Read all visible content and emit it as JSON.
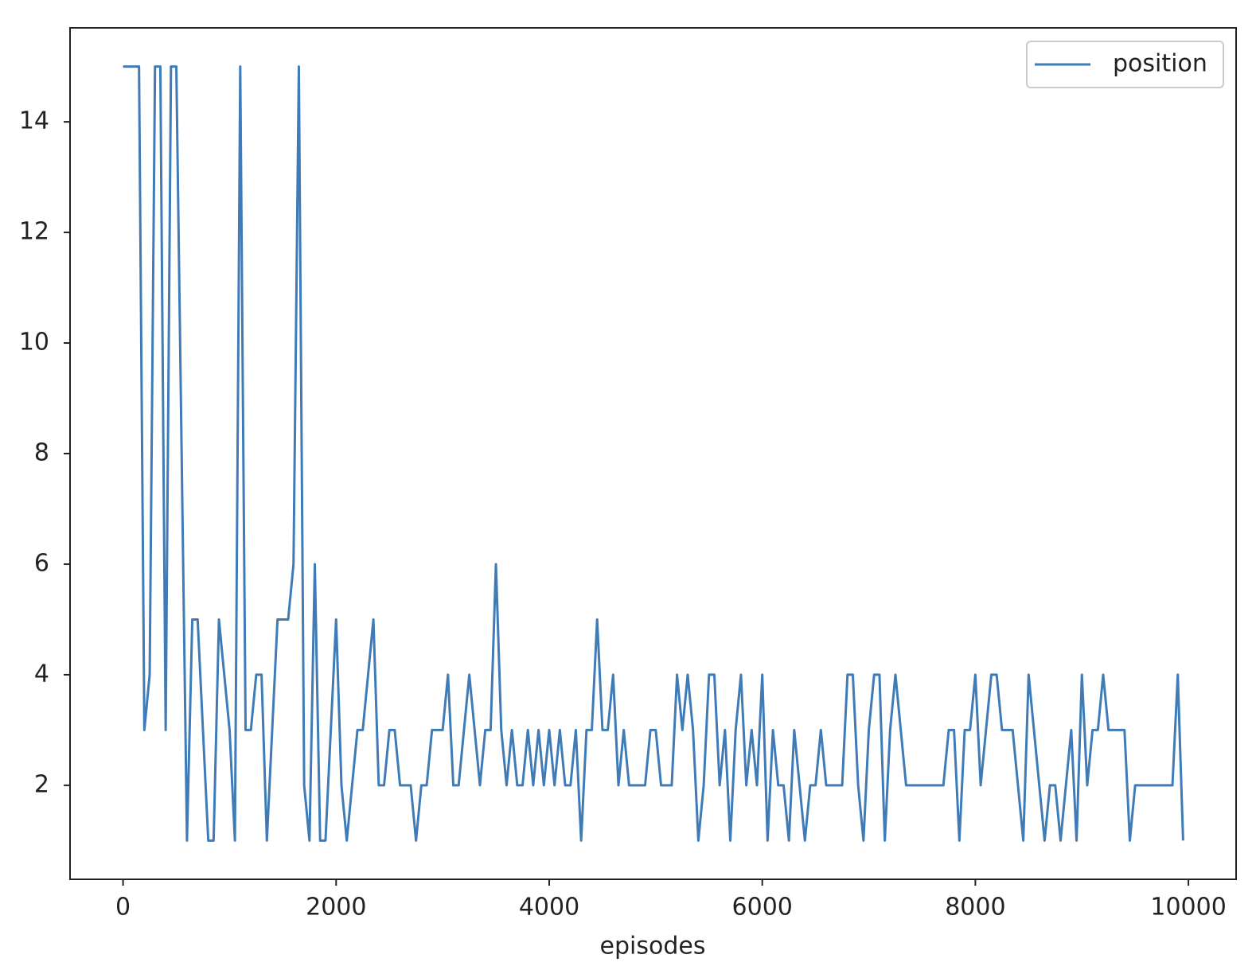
{
  "chart_data": {
    "type": "line",
    "xlabel": "episodes",
    "x": [
      0,
      50,
      100,
      150,
      200,
      250,
      300,
      350,
      400,
      450,
      500,
      550,
      600,
      650,
      700,
      750,
      800,
      850,
      900,
      950,
      1000,
      1050,
      1100,
      1150,
      1200,
      1250,
      1300,
      1350,
      1400,
      1450,
      1500,
      1550,
      1600,
      1650,
      1700,
      1750,
      1800,
      1850,
      1900,
      1950,
      2000,
      2050,
      2100,
      2150,
      2200,
      2250,
      2300,
      2350,
      2400,
      2450,
      2500,
      2550,
      2600,
      2650,
      2700,
      2750,
      2800,
      2850,
      2900,
      2950,
      3000,
      3050,
      3100,
      3150,
      3200,
      3250,
      3300,
      3350,
      3400,
      3450,
      3500,
      3550,
      3600,
      3650,
      3700,
      3750,
      3800,
      3850,
      3900,
      3950,
      4000,
      4050,
      4100,
      4150,
      4200,
      4250,
      4300,
      4350,
      4400,
      4450,
      4500,
      4550,
      4600,
      4650,
      4700,
      4750,
      4800,
      4850,
      4900,
      4950,
      5000,
      5050,
      5100,
      5150,
      5200,
      5250,
      5300,
      5350,
      5400,
      5450,
      5500,
      5550,
      5600,
      5650,
      5700,
      5750,
      5800,
      5850,
      5900,
      5950,
      6000,
      6050,
      6100,
      6150,
      6200,
      6250,
      6300,
      6350,
      6400,
      6450,
      6500,
      6550,
      6600,
      6650,
      6700,
      6750,
      6800,
      6850,
      6900,
      6950,
      7000,
      7050,
      7100,
      7150,
      7200,
      7250,
      7300,
      7350,
      7400,
      7450,
      7500,
      7550,
      7600,
      7650,
      7700,
      7750,
      7800,
      7850,
      7900,
      7950,
      8000,
      8050,
      8100,
      8150,
      8200,
      8250,
      8300,
      8350,
      8400,
      8450,
      8500,
      8550,
      8600,
      8650,
      8700,
      8750,
      8800,
      8850,
      8900,
      8950,
      9000,
      9050,
      9100,
      9150,
      9200,
      9250,
      9300,
      9350,
      9400,
      9450,
      9500,
      9550,
      9600,
      9650,
      9700,
      9750,
      9800,
      9850,
      9900,
      9950
    ],
    "series": [
      {
        "name": "position",
        "color": "#3f7bb7",
        "values": [
          15,
          15,
          15,
          15,
          3,
          4,
          15,
          15,
          3,
          15,
          15,
          8,
          1,
          5,
          5,
          3,
          1,
          1,
          5,
          4,
          3,
          1,
          15,
          3,
          3,
          4,
          4,
          1,
          3,
          5,
          5,
          5,
          6,
          15,
          2,
          1,
          6,
          1,
          1,
          3,
          5,
          2,
          1,
          2,
          3,
          3,
          4,
          5,
          2,
          2,
          3,
          3,
          2,
          2,
          2,
          1,
          2,
          2,
          3,
          3,
          3,
          4,
          2,
          2,
          3,
          4,
          3,
          2,
          3,
          3,
          6,
          3,
          2,
          3,
          2,
          2,
          3,
          2,
          3,
          2,
          3,
          2,
          3,
          2,
          2,
          3,
          1,
          3,
          3,
          5,
          3,
          3,
          4,
          2,
          3,
          2,
          2,
          2,
          2,
          3,
          3,
          2,
          2,
          2,
          4,
          3,
          4,
          3,
          1,
          2,
          4,
          4,
          2,
          3,
          1,
          3,
          4,
          2,
          3,
          2,
          4,
          1,
          3,
          2,
          2,
          1,
          3,
          2,
          1,
          2,
          2,
          3,
          2,
          2,
          2,
          2,
          4,
          4,
          2,
          1,
          3,
          4,
          4,
          1,
          3,
          4,
          3,
          2,
          2,
          2,
          2,
          2,
          2,
          2,
          2,
          3,
          3,
          1,
          3,
          3,
          4,
          2,
          3,
          4,
          4,
          3,
          3,
          3,
          2,
          1,
          4,
          3,
          2,
          1,
          2,
          2,
          1,
          2,
          3,
          1,
          4,
          2,
          3,
          3,
          4,
          3,
          3,
          3,
          3,
          1,
          2,
          2,
          2,
          2,
          2,
          2,
          2,
          2,
          4,
          1
        ]
      }
    ],
    "xlim": [
      -497.5,
      10447.5
    ],
    "xticks": [
      0,
      2000,
      4000,
      6000,
      8000,
      10000
    ],
    "ylim": [
      0.3,
      15.7
    ],
    "yticks": [
      2,
      4,
      6,
      8,
      10,
      12,
      14
    ],
    "legend": "upper right"
  }
}
